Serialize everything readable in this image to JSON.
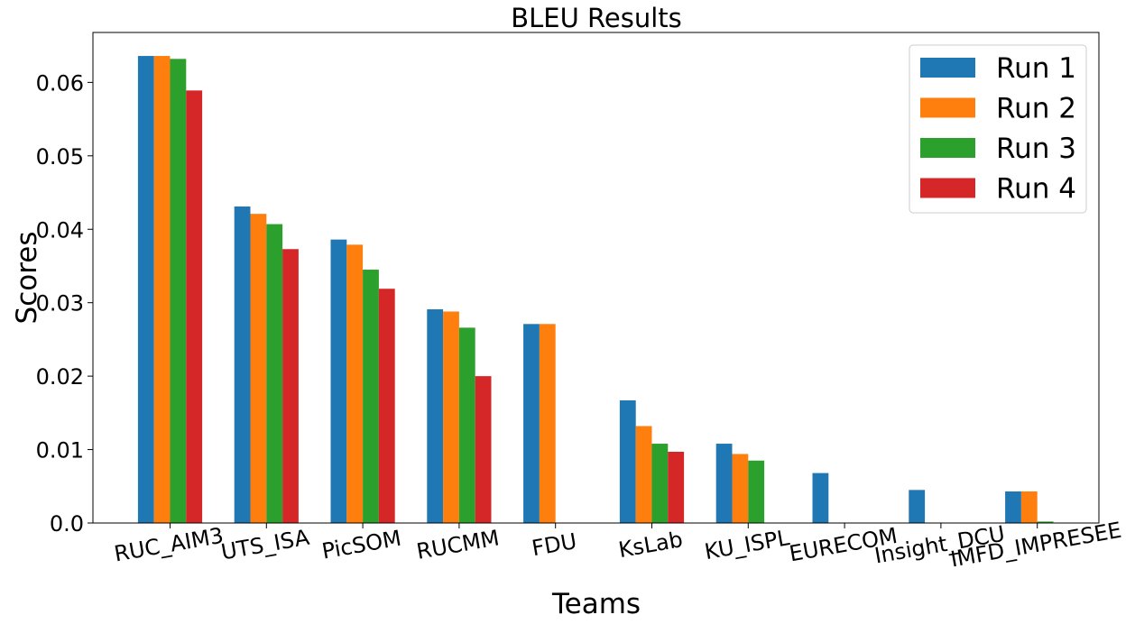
{
  "chart_data": {
    "type": "bar",
    "title": "BLEU Results",
    "xlabel": "Teams",
    "ylabel": "Scores",
    "ylim": [
      0,
      0.0668
    ],
    "yticks": [
      0.0,
      0.01,
      0.02,
      0.03,
      0.04,
      0.05,
      0.06
    ],
    "ytick_labels": [
      "0.0",
      "0.01",
      "0.02",
      "0.03",
      "0.04",
      "0.05",
      "0.06"
    ],
    "categories": [
      "RUC_AIM3",
      "UTS_ISA",
      "PicSOM",
      "RUCMM",
      "FDU",
      "KsLab",
      "KU_ISPL",
      "EURECOM",
      "Insight_DCU",
      "IMFD_IMPRESEE"
    ],
    "series": [
      {
        "name": "Run 1",
        "color": "#1f77b4",
        "values": [
          0.0636,
          0.0431,
          0.0386,
          0.0291,
          0.0271,
          0.0167,
          0.0108,
          0.0068,
          0.0045,
          0.0043
        ]
      },
      {
        "name": "Run 2",
        "color": "#ff7f0e",
        "values": [
          0.0636,
          0.0421,
          0.0379,
          0.0288,
          0.0271,
          0.0132,
          0.0094,
          null,
          null,
          0.0043
        ]
      },
      {
        "name": "Run 3",
        "color": "#2ca02c",
        "values": [
          0.0632,
          0.0407,
          0.0345,
          0.0266,
          null,
          0.0108,
          0.0085,
          null,
          null,
          0.0002
        ]
      },
      {
        "name": "Run 4",
        "color": "#d62728",
        "values": [
          0.0589,
          0.0373,
          0.0319,
          0.02,
          null,
          0.0097,
          null,
          null,
          null,
          null
        ]
      }
    ],
    "grid": false,
    "legend_position": "top-right",
    "xtick_rotation_deg": -10
  }
}
